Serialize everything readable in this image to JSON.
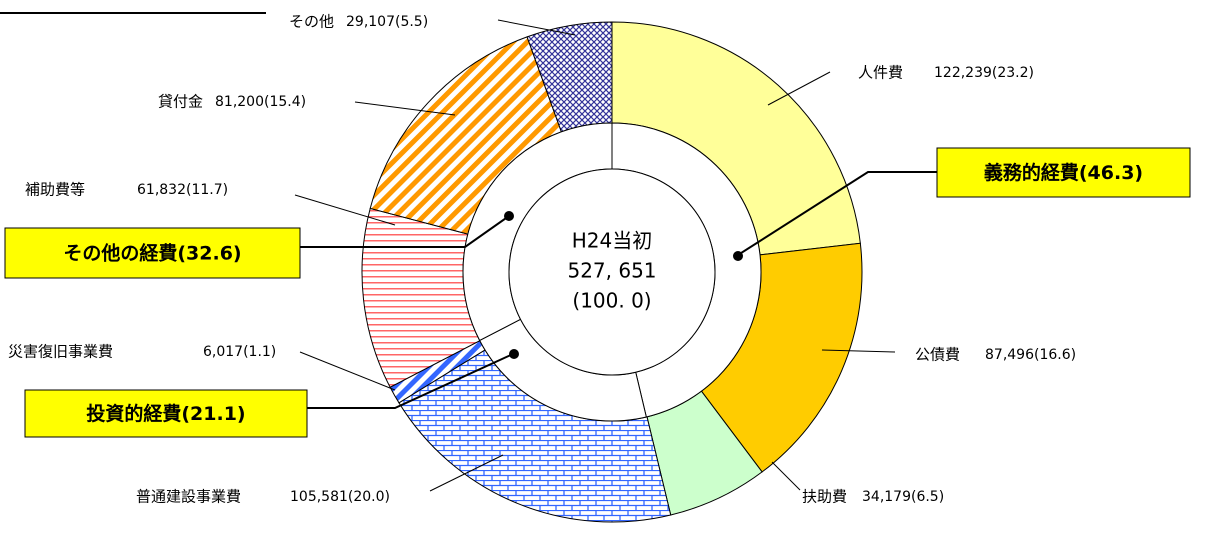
{
  "chart_data": {
    "type": "donut",
    "categories": [
      "人件費",
      "公債費",
      "扶助費",
      "普通建設事業費",
      "災害復旧事業費",
      "補助費等",
      "貸付金",
      "その他"
    ],
    "values": [
      122239,
      87496,
      34179,
      105581,
      6017,
      61832,
      81200,
      29107
    ],
    "percents": [
      23.2,
      16.6,
      6.5,
      20.0,
      1.1,
      11.7,
      15.4,
      5.5
    ],
    "value_labels": [
      "122,239(23.2)",
      "87,496(16.6)",
      "34,179(6.5)",
      "105,581(20.0)",
      "6,017(1.1)",
      "61,832(11.7)",
      "81,200(15.4)",
      "29,107(5.5)"
    ],
    "colors": [
      "#ffff99",
      "#ffcc00",
      "#ccffcc",
      "#3366ff",
      "#3366ff",
      "#ff6666",
      "#ff9900",
      "#333399"
    ],
    "patterns": [
      "solid",
      "solid",
      "solid",
      "brick",
      "diagonal",
      "hlines",
      "diagonal",
      "crosshatch"
    ],
    "center_label": [
      "H24当初",
      "527, 651",
      "(100. 0)"
    ],
    "groups": [
      {
        "label": "義務的経費(46.3)",
        "value": 46.3
      },
      {
        "label": "投資的経費(21.1)",
        "value": 21.1
      },
      {
        "label": "その他の経費(32.6)",
        "value": 32.6
      }
    ]
  }
}
